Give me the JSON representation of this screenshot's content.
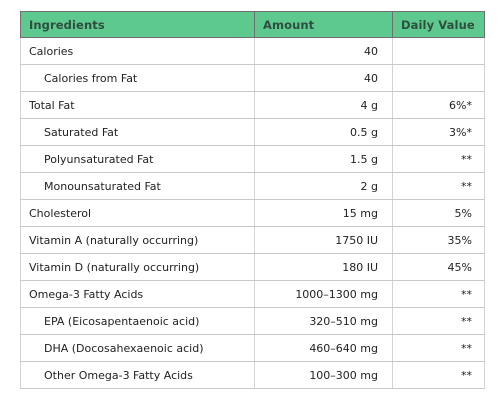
{
  "headers": {
    "ingredients": "Ingredients",
    "amount": "Amount",
    "daily_value": "Daily Value"
  },
  "rows": [
    {
      "name": "Calories",
      "amount": "40",
      "dv": "",
      "indent": false
    },
    {
      "name": "Calories from Fat",
      "amount": "40",
      "dv": "",
      "indent": true
    },
    {
      "name": "Total Fat",
      "amount": "4 g",
      "dv": "6%*",
      "indent": false
    },
    {
      "name": "Saturated Fat",
      "amount": "0.5 g",
      "dv": "3%*",
      "indent": true
    },
    {
      "name": "Polyunsaturated Fat",
      "amount": "1.5 g",
      "dv": "**",
      "indent": true
    },
    {
      "name": "Monounsaturated Fat",
      "amount": "2 g",
      "dv": "**",
      "indent": true
    },
    {
      "name": "Cholesterol",
      "amount": "15 mg",
      "dv": "5%",
      "indent": false
    },
    {
      "name": "Vitamin A (naturally occurring)",
      "amount": "1750 IU",
      "dv": "35%",
      "indent": false
    },
    {
      "name": "Vitamin D (naturally occurring)",
      "amount": "180 IU",
      "dv": "45%",
      "indent": false
    },
    {
      "name": "Omega-3 Fatty Acids",
      "amount": "1000–1300 mg",
      "dv": "**",
      "indent": false
    },
    {
      "name": "EPA (Eicosapentaenoic acid)",
      "amount": "320–510 mg",
      "dv": "**",
      "indent": true
    },
    {
      "name": "DHA (Docosahexaenoic acid)",
      "amount": "460–640 mg",
      "dv": "**",
      "indent": true
    },
    {
      "name": "Other Omega-3 Fatty Acids",
      "amount": "100–300 mg",
      "dv": "**",
      "indent": true
    }
  ],
  "colors": {
    "header_bg": "#5ec98f",
    "header_text": "#2e4f40",
    "border": "#c8c8c8"
  }
}
